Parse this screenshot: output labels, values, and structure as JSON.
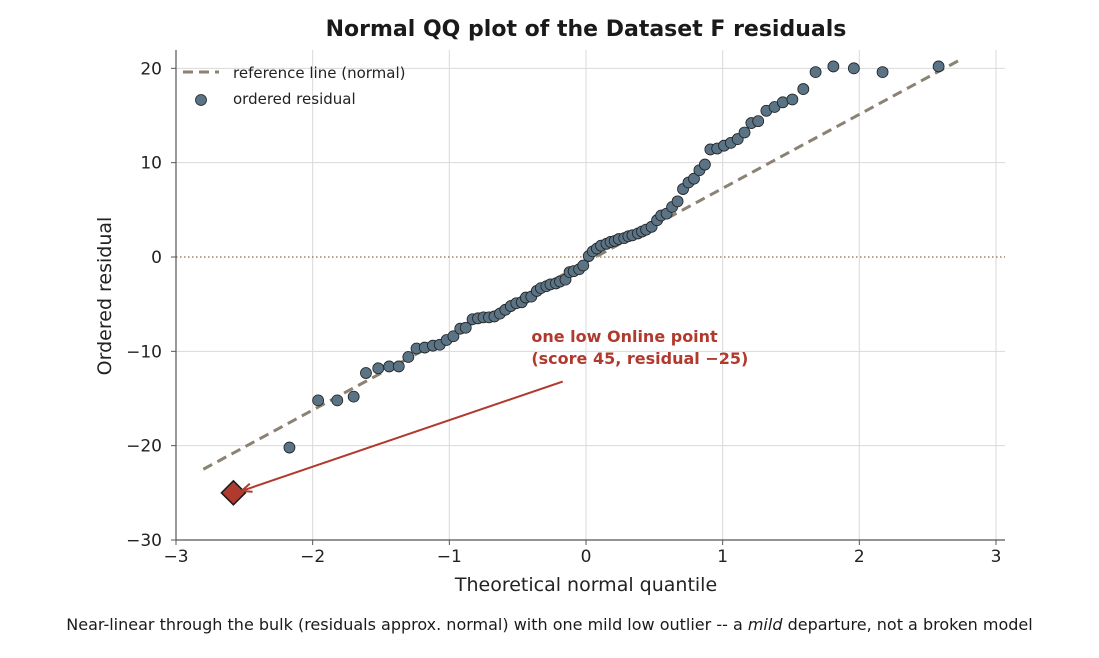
{
  "chart_data": {
    "type": "scatter",
    "title": "Normal QQ plot of the Dataset F residuals",
    "xlabel": "Theoretical normal quantile",
    "ylabel": "Ordered residual",
    "xlim": [
      -3,
      3
    ],
    "ylim": [
      -30,
      22
    ],
    "xticks": [
      -3,
      -2,
      -1,
      0,
      1,
      2,
      3
    ],
    "yticks": [
      -30,
      -20,
      -10,
      0,
      10,
      20
    ],
    "xtick_labels": [
      "−3",
      "−2",
      "−1",
      "0",
      "1",
      "2",
      "3"
    ],
    "ytick_labels": [
      "−30",
      "−20",
      "−10",
      "0",
      "10",
      "20"
    ],
    "grid": true,
    "legend_position": "top-left",
    "zero_line": true,
    "colors": {
      "points": "#5a7385",
      "points_edge": "#222222",
      "reference_line": "#8a8273",
      "outlier": "#b03a2e",
      "zero_line": "#8a6a50",
      "grid": "#d9d9d9",
      "axis": "#555555"
    },
    "series": [
      {
        "name": "reference line (normal)",
        "kind": "line",
        "x": [
          -2.8,
          2.75
        ],
        "y": [
          -22.5,
          21.0
        ]
      },
      {
        "name": "ordered residual",
        "kind": "points",
        "x": [
          -2.17,
          -1.96,
          -1.82,
          -1.7,
          -1.61,
          -1.52,
          -1.44,
          -1.37,
          -1.3,
          -1.24,
          -1.18,
          -1.12,
          -1.07,
          -1.02,
          -0.97,
          -0.92,
          -0.88,
          -0.83,
          -0.79,
          -0.75,
          -0.71,
          -0.67,
          -0.63,
          -0.59,
          -0.55,
          -0.51,
          -0.47,
          -0.44,
          -0.4,
          -0.36,
          -0.33,
          -0.29,
          -0.26,
          -0.22,
          -0.19,
          -0.15,
          -0.12,
          -0.09,
          -0.05,
          -0.02,
          0.02,
          0.05,
          0.08,
          0.11,
          0.15,
          0.18,
          0.21,
          0.24,
          0.28,
          0.31,
          0.34,
          0.38,
          0.41,
          0.44,
          0.48,
          0.52,
          0.55,
          0.59,
          0.63,
          0.67,
          0.71,
          0.75,
          0.79,
          0.83,
          0.87,
          0.91,
          0.96,
          1.01,
          1.06,
          1.11,
          1.16,
          1.21,
          1.26,
          1.32,
          1.38,
          1.44,
          1.51,
          1.59,
          1.68,
          1.81,
          1.96,
          2.17,
          2.58
        ],
        "y": [
          -20.2,
          -15.2,
          -15.2,
          -14.8,
          -12.3,
          -11.8,
          -11.6,
          -11.6,
          -10.6,
          -9.7,
          -9.6,
          -9.4,
          -9.3,
          -8.8,
          -8.4,
          -7.6,
          -7.5,
          -6.6,
          -6.5,
          -6.4,
          -6.4,
          -6.3,
          -6.0,
          -5.6,
          -5.2,
          -4.9,
          -4.8,
          -4.3,
          -4.2,
          -3.6,
          -3.3,
          -3.1,
          -2.9,
          -2.8,
          -2.6,
          -2.4,
          -1.6,
          -1.5,
          -1.3,
          -0.9,
          0.1,
          0.6,
          0.9,
          1.2,
          1.4,
          1.6,
          1.7,
          1.9,
          2.0,
          2.2,
          2.3,
          2.5,
          2.7,
          2.9,
          3.2,
          3.9,
          4.4,
          4.6,
          5.3,
          5.9,
          7.2,
          7.9,
          8.3,
          9.2,
          9.8,
          11.4,
          11.5,
          11.8,
          12.1,
          12.5,
          13.2,
          14.2,
          14.4,
          15.5,
          15.9,
          16.4,
          16.7,
          17.8,
          19.6,
          20.2,
          20.0,
          19.6,
          20.2
        ],
        "note": ""
      },
      {
        "name": "",
        "kind": "outlier",
        "x": [
          -2.58
        ],
        "y": [
          -25.0
        ]
      }
    ],
    "annotation": {
      "line1": "one low Online point",
      "line2": "(score 45, residual −25)",
      "text_x": -0.4,
      "text_y": -9.0,
      "arrow_from": [
        -0.17,
        -13.2
      ],
      "arrow_to": [
        -2.52,
        -24.8
      ]
    }
  },
  "caption": {
    "before": "Near-linear through the bulk (residuals approx. normal) with one mild low outlier -- a ",
    "emphasis": "mild",
    "after": " departure, not a broken model"
  }
}
